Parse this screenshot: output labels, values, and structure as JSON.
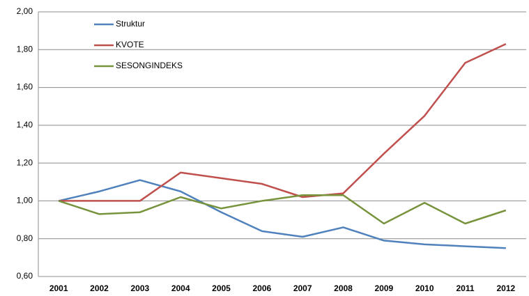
{
  "chart_data": {
    "type": "line",
    "categories": [
      "2001",
      "2002",
      "2003",
      "2004",
      "2005",
      "2006",
      "2007",
      "2008",
      "2009",
      "2010",
      "2011",
      "2012"
    ],
    "series": [
      {
        "name": "Struktur",
        "color": "#4f81bd",
        "values": [
          1.0,
          1.05,
          1.11,
          1.05,
          0.94,
          0.84,
          0.81,
          0.86,
          0.79,
          0.77,
          0.76,
          0.75
        ]
      },
      {
        "name": "KVOTE",
        "color": "#c0504d",
        "values": [
          1.0,
          1.0,
          1.0,
          1.15,
          1.12,
          1.09,
          1.02,
          1.04,
          1.25,
          1.45,
          1.73,
          1.83
        ]
      },
      {
        "name": "SESONGINDEKS",
        "color": "#77933c",
        "values": [
          1.0,
          0.93,
          0.94,
          1.02,
          0.96,
          1.0,
          1.03,
          1.03,
          0.88,
          0.99,
          0.88,
          0.95
        ]
      }
    ],
    "ylim": [
      0.6,
      2.0
    ],
    "yticks": [
      {
        "value": 0.6,
        "label": "0,60"
      },
      {
        "value": 0.8,
        "label": "0,80"
      },
      {
        "value": 1.0,
        "label": "1,00"
      },
      {
        "value": 1.2,
        "label": "1,20"
      },
      {
        "value": 1.4,
        "label": "1,40"
      },
      {
        "value": 1.6,
        "label": "1,60"
      },
      {
        "value": 1.8,
        "label": "1,80"
      },
      {
        "value": 2.0,
        "label": "2,00"
      }
    ],
    "grid": true
  }
}
